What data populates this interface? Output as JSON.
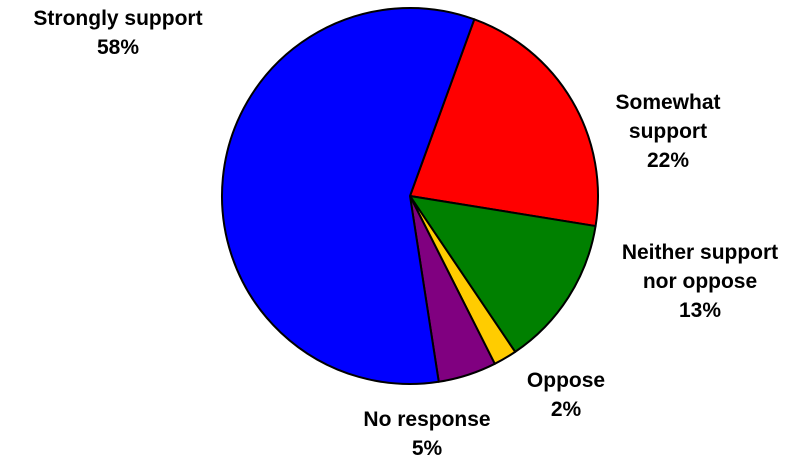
{
  "chart_data": {
    "type": "pie",
    "start_angle_deg": 70,
    "direction": "clockwise",
    "slices": [
      {
        "label_lines": [
          "Somewhat",
          "support"
        ],
        "value": 22,
        "value_label": "22%",
        "color": "#ff0000"
      },
      {
        "label_lines": [
          "Neither support",
          "nor oppose"
        ],
        "value": 13,
        "value_label": "13%",
        "color": "#008000"
      },
      {
        "label_lines": [
          "Oppose"
        ],
        "value": 2,
        "value_label": "2%",
        "color": "#ffcc00"
      },
      {
        "label_lines": [
          "No response"
        ],
        "value": 5,
        "value_label": "5%",
        "color": "#800080"
      },
      {
        "label_lines": [
          "Strongly support"
        ],
        "value": 58,
        "value_label": "58%",
        "color": "#0000ff"
      }
    ]
  }
}
